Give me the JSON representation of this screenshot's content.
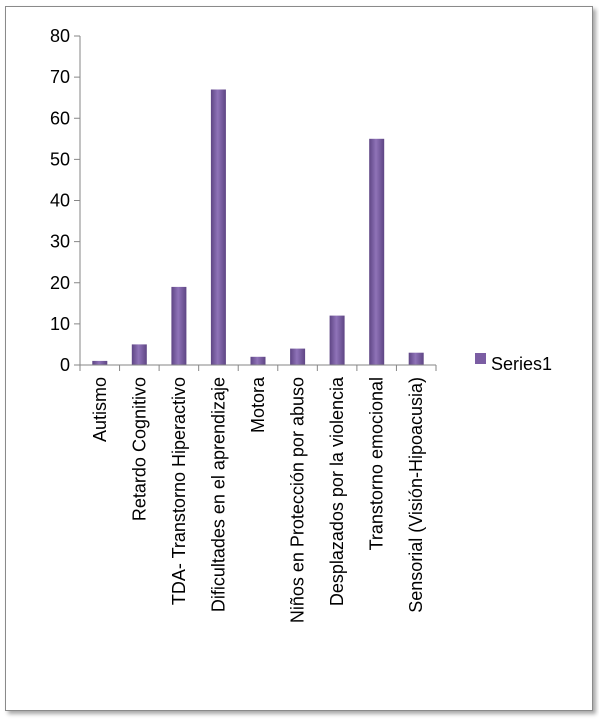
{
  "chart_data": {
    "type": "bar",
    "title": "",
    "xlabel": "",
    "ylabel": "",
    "categories": [
      "Autismo",
      "Retardo Cognitivo",
      "TDA- Transtorno Hiperactivo",
      "Dificultades en el aprendizaje",
      "Motora",
      "Niños en Protección por abuso",
      "Desplazados por la violencia",
      "Transtorno emocional",
      "Sensorial (Visión-Hipoacusia)"
    ],
    "series": [
      {
        "name": "Series1",
        "values": [
          1,
          5,
          19,
          67,
          2,
          4,
          12,
          55,
          3
        ]
      }
    ],
    "ylim": [
      0,
      80
    ],
    "yticks": [
      0,
      10,
      20,
      30,
      40,
      50,
      60,
      70,
      80
    ],
    "grid": false,
    "legend": "right",
    "colors": {
      "bar": "#7b5da3",
      "bar_light": "#8f73b8",
      "bar_dark": "#5e4584",
      "axis": "#868686"
    }
  }
}
